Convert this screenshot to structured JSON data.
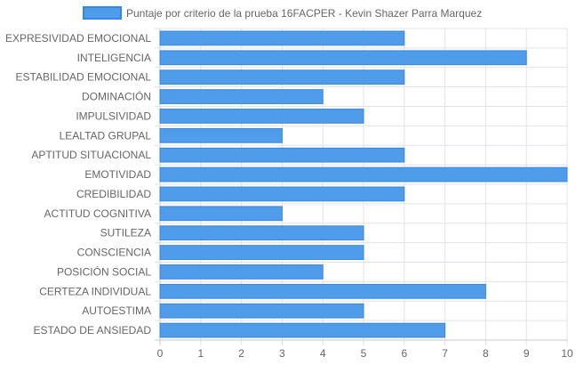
{
  "chart_data": {
    "type": "bar",
    "orientation": "horizontal",
    "legend_position": "top",
    "grid": true,
    "colors": {
      "bar_fill": "#4e9cea",
      "bar_stroke": "#3a86df",
      "grid": "#e3e3e3",
      "axis": "#c8c8c8",
      "text": "#666666"
    },
    "series": [
      {
        "name": "Puntaje por criterio de la prueba 16FACPER - Kevin Shazer Parra Marquez",
        "values": [
          6,
          9,
          6,
          4,
          5,
          3,
          6,
          10,
          6,
          3,
          5,
          5,
          4,
          8,
          5,
          7
        ]
      }
    ],
    "categories": [
      "EXPRESIVIDAD EMOCIONAL",
      "INTELIGENCIA",
      "ESTABILIDAD EMOCIONAL",
      "DOMINACIÓN",
      "IMPULSIVIDAD",
      "LEALTAD GRUPAL",
      "APTITUD SITUACIONAL",
      "EMOTIVIDAD",
      "CREDIBILIDAD",
      "ACTITUD COGNITIVA",
      "SUTILEZA",
      "CONSCIENCIA",
      "POSICIÓN SOCIAL",
      "CERTEZA INDIVIDUAL",
      "AUTOESTIMA",
      "ESTADO DE ANSIEDAD"
    ],
    "xlim": [
      0,
      10
    ],
    "x_ticks": [
      "0",
      "1",
      "2",
      "3",
      "4",
      "5",
      "6",
      "7",
      "8",
      "9",
      "10"
    ]
  }
}
